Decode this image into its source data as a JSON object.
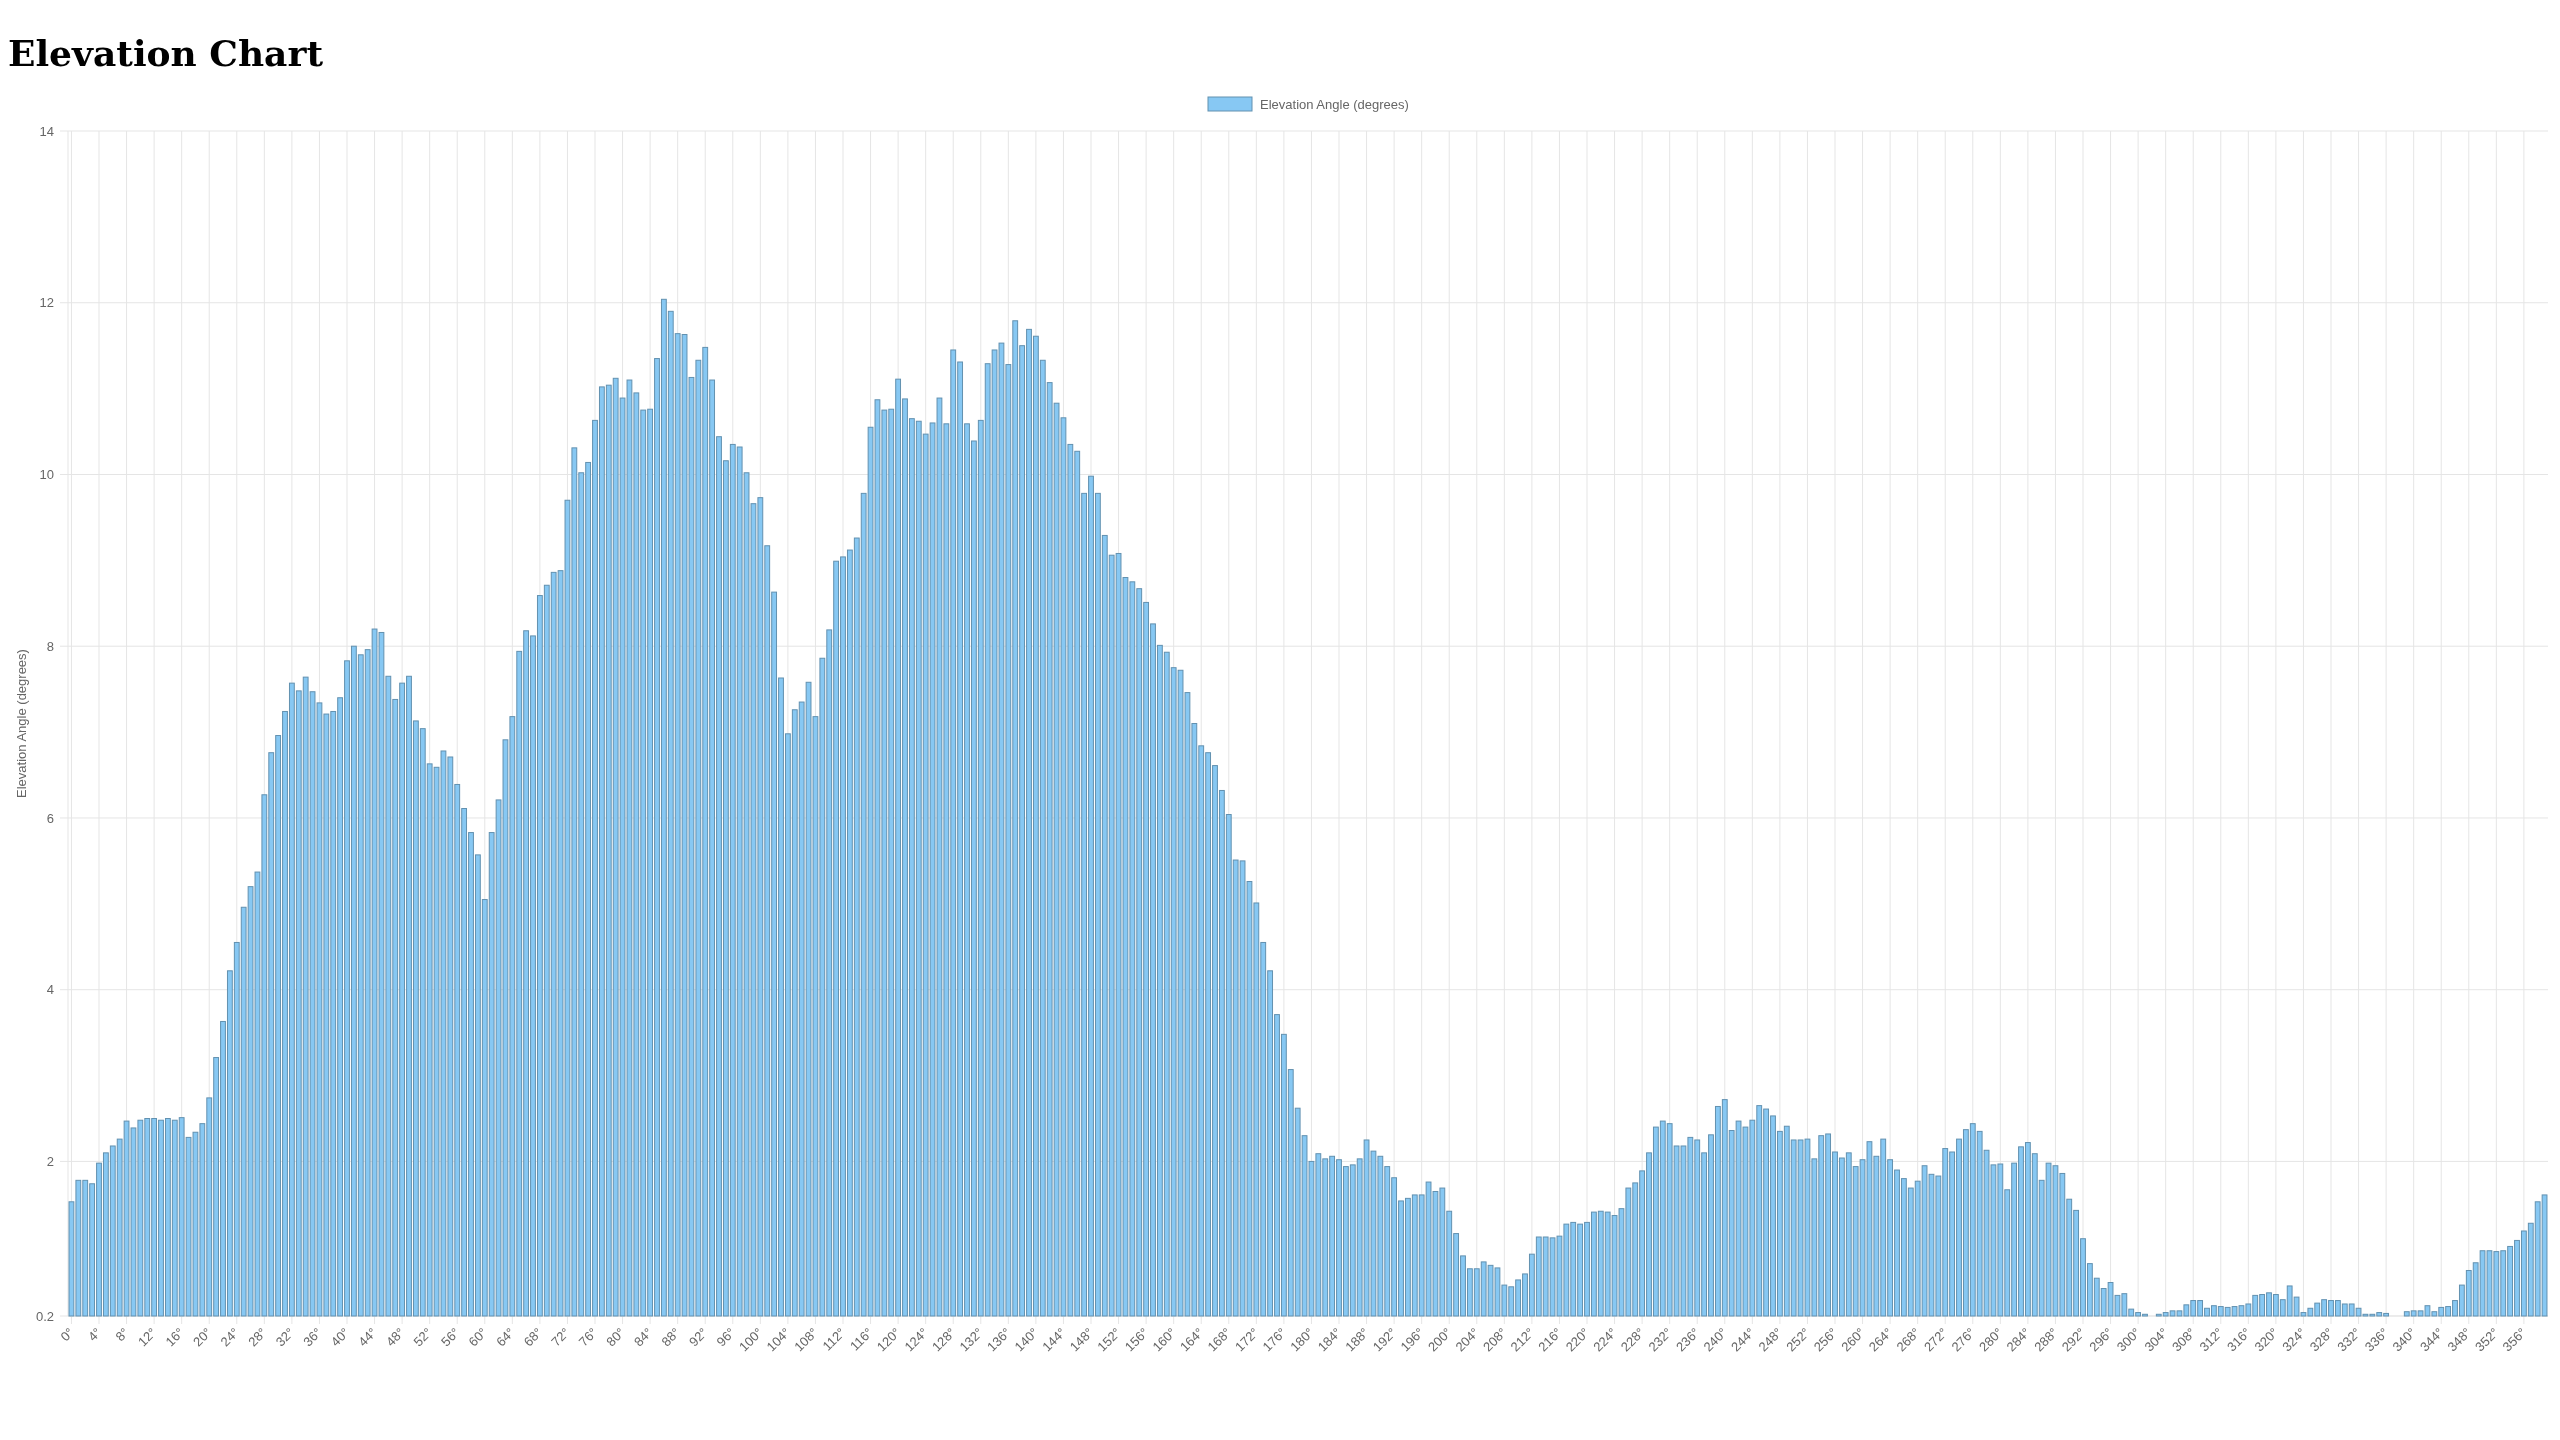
{
  "chart_data": {
    "type": "bar",
    "title": "Elevation Chart",
    "ylabel": "Elevation Angle (degrees)",
    "categories": [
      "0°",
      null,
      null,
      null,
      "4°",
      null,
      null,
      null,
      "8°",
      null,
      null,
      null,
      "12°",
      null,
      null,
      null,
      "16°",
      null,
      null,
      null,
      "20°",
      null,
      null,
      null,
      "24°",
      null,
      null,
      null,
      "28°",
      null,
      null,
      null,
      "32°",
      null,
      null,
      null,
      "36°",
      null,
      null,
      null,
      "40°",
      null,
      null,
      null,
      "44°",
      null,
      null,
      null,
      "48°",
      null,
      null,
      null,
      "52°",
      null,
      null,
      null,
      "56°",
      null,
      null,
      null,
      "60°",
      null,
      null,
      null,
      "64°",
      null,
      null,
      null,
      "68°",
      null,
      null,
      null,
      "72°",
      null,
      null,
      null,
      "76°",
      null,
      null,
      null,
      "80°",
      null,
      null,
      null,
      "84°",
      null,
      null,
      null,
      "88°",
      null,
      null,
      null,
      "92°",
      null,
      null,
      null,
      "96°",
      null,
      null,
      null,
      "100°",
      null,
      null,
      null,
      "104°",
      null,
      null,
      null,
      "108°",
      null,
      null,
      null,
      "112°",
      null,
      null,
      null,
      "116°",
      null,
      null,
      null,
      "120°",
      null,
      null,
      null,
      "124°",
      null,
      null,
      null,
      "128°",
      null,
      null,
      null,
      "132°",
      null,
      null,
      null,
      "136°",
      null,
      null,
      null,
      "140°",
      null,
      null,
      null,
      "144°",
      null,
      null,
      null,
      "148°",
      null,
      null,
      null,
      "152°",
      null,
      null,
      null,
      "156°",
      null,
      null,
      null,
      "160°",
      null,
      null,
      null,
      "164°",
      null,
      null,
      null,
      "168°",
      null,
      null,
      null,
      "172°",
      null,
      null,
      null,
      "176°",
      null,
      null,
      null,
      "180°",
      null,
      null,
      null,
      "184°",
      null,
      null,
      null,
      "188°",
      null,
      null,
      null,
      "192°",
      null,
      null,
      null,
      "196°",
      null,
      null,
      null,
      "200°",
      null,
      null,
      null,
      "204°",
      null,
      null,
      null,
      "208°",
      null,
      null,
      null,
      "212°",
      null,
      null,
      null,
      "216°",
      null,
      null,
      null,
      "220°",
      null,
      null,
      null,
      "224°",
      null,
      null,
      null,
      "228°",
      null,
      null,
      null,
      "232°",
      null,
      null,
      null,
      "236°",
      null,
      null,
      null,
      "240°",
      null,
      null,
      null,
      "244°",
      null,
      null,
      null,
      "248°",
      null,
      null,
      null,
      "252°",
      null,
      null,
      null,
      "256°",
      null,
      null,
      null,
      "260°",
      null,
      null,
      null,
      "264°",
      null,
      null,
      null,
      "268°",
      null,
      null,
      null,
      "272°",
      null,
      null,
      null,
      "276°",
      null,
      null,
      null,
      "280°",
      null,
      null,
      null,
      "284°",
      null,
      null,
      null,
      "288°",
      null,
      null,
      null,
      "292°",
      null,
      null,
      null,
      "296°",
      null,
      null,
      null,
      "300°",
      null,
      null,
      null,
      "304°",
      null,
      null,
      null,
      "308°",
      null,
      null,
      null,
      "312°",
      null,
      null,
      null,
      "316°",
      null,
      null,
      null,
      "320°",
      null,
      null,
      null,
      "324°",
      null,
      null,
      null,
      "328°",
      null,
      null,
      null,
      "332°",
      null,
      null,
      null,
      "336°",
      null,
      null,
      null,
      "340°",
      null,
      null,
      null,
      "344°",
      null,
      null,
      null,
      "348°",
      null,
      null,
      null,
      "352°",
      null,
      null,
      null,
      "356°",
      null,
      null,
      null
    ],
    "series": [
      {
        "name": "Elevation Angle (degrees)",
        "color": "#87c8f3",
        "values": [
          1.53,
          1.78,
          1.78,
          1.74,
          1.98,
          2.1,
          2.18,
          2.26,
          2.47,
          2.39,
          2.48,
          2.5,
          2.5,
          2.48,
          2.5,
          2.48,
          2.51,
          2.28,
          2.34,
          2.44,
          2.74,
          3.21,
          3.63,
          4.22,
          4.55,
          4.96,
          5.2,
          5.37,
          6.27,
          6.76,
          6.96,
          7.24,
          7.57,
          7.48,
          7.64,
          7.47,
          7.34,
          7.21,
          7.24,
          7.4,
          7.83,
          8.0,
          7.9,
          7.96,
          8.2,
          8.16,
          7.65,
          7.38,
          7.57,
          7.65,
          7.13,
          7.04,
          6.63,
          6.59,
          6.78,
          6.71,
          6.39,
          6.11,
          5.83,
          5.57,
          5.05,
          5.83,
          6.21,
          6.91,
          7.18,
          7.94,
          8.18,
          8.12,
          8.59,
          8.71,
          8.86,
          8.88,
          9.7,
          10.31,
          10.02,
          10.14,
          10.63,
          11.02,
          11.04,
          11.12,
          10.89,
          11.1,
          10.95,
          10.75,
          10.76,
          11.35,
          12.04,
          11.9,
          11.64,
          11.63,
          11.13,
          11.33,
          11.48,
          11.1,
          10.44,
          10.16,
          10.35,
          10.32,
          10.02,
          9.66,
          9.73,
          9.17,
          8.63,
          7.63,
          6.98,
          7.26,
          7.35,
          7.58,
          7.18,
          7.86,
          8.19,
          8.99,
          9.04,
          9.12,
          9.26,
          9.78,
          10.55,
          10.87,
          10.75,
          10.76,
          11.11,
          10.88,
          10.65,
          10.62,
          10.47,
          10.6,
          10.89,
          10.59,
          11.45,
          11.31,
          10.59,
          10.39,
          10.63,
          11.29,
          11.45,
          11.53,
          11.28,
          11.79,
          11.5,
          11.69,
          11.61,
          11.33,
          11.07,
          10.83,
          10.66,
          10.35,
          10.27,
          9.78,
          9.98,
          9.78,
          9.29,
          9.06,
          9.08,
          8.8,
          8.75,
          8.67,
          8.51,
          8.26,
          8.01,
          7.93,
          7.75,
          7.72,
          7.46,
          7.1,
          6.84,
          6.76,
          6.61,
          6.32,
          6.04,
          5.51,
          5.5,
          5.26,
          5.01,
          4.55,
          4.22,
          3.71,
          3.48,
          3.07,
          2.62,
          2.3,
          2.0,
          2.09,
          2.03,
          2.06,
          2.02,
          1.94,
          1.96,
          2.03,
          2.25,
          2.12,
          2.06,
          1.94,
          1.81,
          1.54,
          1.57,
          1.61,
          1.61,
          1.76,
          1.65,
          1.69,
          1.42,
          1.16,
          0.9,
          0.75,
          0.75,
          0.83,
          0.79,
          0.76,
          0.56,
          0.54,
          0.62,
          0.69,
          0.92,
          1.12,
          1.12,
          1.11,
          1.13,
          1.27,
          1.29,
          1.27,
          1.29,
          1.41,
          1.42,
          1.41,
          1.37,
          1.45,
          1.69,
          1.75,
          1.89,
          2.1,
          2.4,
          2.47,
          2.44,
          2.18,
          2.18,
          2.28,
          2.25,
          2.1,
          2.31,
          2.64,
          2.72,
          2.36,
          2.47,
          2.4,
          2.48,
          2.65,
          2.61,
          2.53,
          2.35,
          2.41,
          2.25,
          2.25,
          2.26,
          2.03,
          2.3,
          2.32,
          2.11,
          2.04,
          2.1,
          1.94,
          2.02,
          2.23,
          2.06,
          2.26,
          2.02,
          1.9,
          1.8,
          1.69,
          1.77,
          1.95,
          1.85,
          1.83,
          2.15,
          2.11,
          2.26,
          2.37,
          2.44,
          2.35,
          2.13,
          1.96,
          1.97,
          1.67,
          1.98,
          2.17,
          2.22,
          2.09,
          1.78,
          1.98,
          1.95,
          1.86,
          1.56,
          1.43,
          1.1,
          0.81,
          0.64,
          0.52,
          0.59,
          0.44,
          0.46,
          0.28,
          0.24,
          0.22,
          0.2,
          0.22,
          0.24,
          0.26,
          0.26,
          0.33,
          0.38,
          0.38,
          0.29,
          0.32,
          0.31,
          0.3,
          0.31,
          0.32,
          0.34,
          0.44,
          0.45,
          0.47,
          0.45,
          0.39,
          0.55,
          0.42,
          0.24,
          0.29,
          0.35,
          0.39,
          0.38,
          0.38,
          0.34,
          0.34,
          0.29,
          0.22,
          0.22,
          0.24,
          0.23,
          0.2,
          0.2,
          0.25,
          0.26,
          0.26,
          0.32,
          0.25,
          0.3,
          0.31,
          0.38,
          0.56,
          0.73,
          0.82,
          0.96,
          0.96,
          0.95,
          0.96,
          1.01,
          1.08,
          1.19,
          1.28,
          1.53,
          1.61
        ]
      }
    ],
    "ylim": [
      0.2,
      14
    ],
    "yticks": [
      0.2,
      2,
      4,
      6,
      8,
      10,
      12,
      14
    ],
    "grid": true,
    "legend": "top"
  }
}
